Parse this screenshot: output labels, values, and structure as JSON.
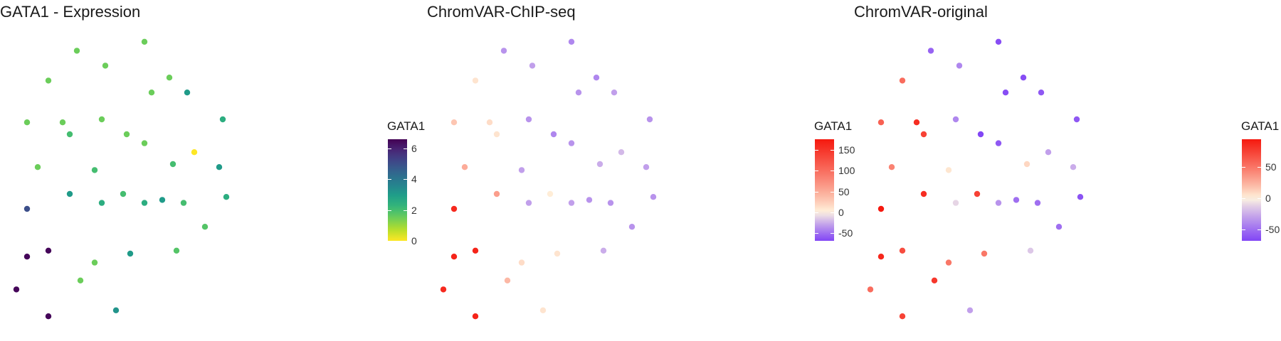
{
  "chart_data": [
    {
      "type": "scatter",
      "title": "GATA1 - Expression",
      "legend": {
        "title": "GATA1",
        "ticks": [
          0,
          2,
          4,
          6
        ],
        "domain": [
          0,
          6.6
        ],
        "scale": "viridis-reversed"
      },
      "points": [
        {
          "x": 0.37,
          "y": 0.04,
          "v": 1.5
        },
        {
          "x": 0.18,
          "y": 0.07,
          "v": 1.5
        },
        {
          "x": 0.26,
          "y": 0.12,
          "v": 1.5
        },
        {
          "x": 0.1,
          "y": 0.17,
          "v": 1.5
        },
        {
          "x": 0.44,
          "y": 0.16,
          "v": 1.5
        },
        {
          "x": 0.39,
          "y": 0.21,
          "v": 1.5
        },
        {
          "x": 0.49,
          "y": 0.21,
          "v": 3.0
        },
        {
          "x": 0.25,
          "y": 0.3,
          "v": 1.5
        },
        {
          "x": 0.14,
          "y": 0.31,
          "v": 1.5
        },
        {
          "x": 0.04,
          "y": 0.31,
          "v": 1.5
        },
        {
          "x": 0.59,
          "y": 0.3,
          "v": 2.5
        },
        {
          "x": 0.16,
          "y": 0.35,
          "v": 2.0
        },
        {
          "x": 0.32,
          "y": 0.35,
          "v": 1.5
        },
        {
          "x": 0.37,
          "y": 0.38,
          "v": 1.5
        },
        {
          "x": 0.51,
          "y": 0.41,
          "v": 0.0
        },
        {
          "x": 0.45,
          "y": 0.45,
          "v": 2.0
        },
        {
          "x": 0.58,
          "y": 0.46,
          "v": 3.0
        },
        {
          "x": 0.07,
          "y": 0.46,
          "v": 1.5
        },
        {
          "x": 0.23,
          "y": 0.47,
          "v": 2.0
        },
        {
          "x": 0.16,
          "y": 0.55,
          "v": 3.0
        },
        {
          "x": 0.31,
          "y": 0.55,
          "v": 2.0
        },
        {
          "x": 0.25,
          "y": 0.58,
          "v": 2.5
        },
        {
          "x": 0.37,
          "y": 0.58,
          "v": 2.5
        },
        {
          "x": 0.42,
          "y": 0.57,
          "v": 3.0
        },
        {
          "x": 0.48,
          "y": 0.58,
          "v": 2.0
        },
        {
          "x": 0.6,
          "y": 0.56,
          "v": 2.5
        },
        {
          "x": 0.04,
          "y": 0.6,
          "v": 5.0
        },
        {
          "x": 0.54,
          "y": 0.66,
          "v": 1.8
        },
        {
          "x": 0.1,
          "y": 0.74,
          "v": 6.5
        },
        {
          "x": 0.04,
          "y": 0.76,
          "v": 6.5
        },
        {
          "x": 0.33,
          "y": 0.75,
          "v": 3.0
        },
        {
          "x": 0.46,
          "y": 0.74,
          "v": 1.8
        },
        {
          "x": 0.23,
          "y": 0.78,
          "v": 1.5
        },
        {
          "x": 0.19,
          "y": 0.84,
          "v": 1.5
        },
        {
          "x": 0.01,
          "y": 0.87,
          "v": 6.5
        },
        {
          "x": 0.29,
          "y": 0.94,
          "v": 3.2
        },
        {
          "x": 0.1,
          "y": 0.96,
          "v": 6.5
        }
      ]
    },
    {
      "type": "scatter",
      "title": "ChromVAR-ChIP-seq",
      "legend": {
        "title": "GATA1",
        "ticks": [
          -50,
          0,
          50,
          100,
          150
        ],
        "domain": [
          -68,
          175
        ],
        "scale": "purple-white-red"
      },
      "points": [
        {
          "x": 0.37,
          "y": 0.04,
          "v": -40
        },
        {
          "x": 0.18,
          "y": 0.07,
          "v": -35
        },
        {
          "x": 0.26,
          "y": 0.12,
          "v": -30
        },
        {
          "x": 0.1,
          "y": 0.17,
          "v": 10
        },
        {
          "x": 0.44,
          "y": 0.16,
          "v": -40
        },
        {
          "x": 0.39,
          "y": 0.21,
          "v": -35
        },
        {
          "x": 0.49,
          "y": 0.21,
          "v": -30
        },
        {
          "x": 0.25,
          "y": 0.3,
          "v": -35
        },
        {
          "x": 0.14,
          "y": 0.31,
          "v": 15
        },
        {
          "x": 0.04,
          "y": 0.31,
          "v": 30
        },
        {
          "x": 0.59,
          "y": 0.3,
          "v": -35
        },
        {
          "x": 0.16,
          "y": 0.35,
          "v": 10
        },
        {
          "x": 0.32,
          "y": 0.35,
          "v": -40
        },
        {
          "x": 0.37,
          "y": 0.38,
          "v": -35
        },
        {
          "x": 0.51,
          "y": 0.41,
          "v": -20
        },
        {
          "x": 0.45,
          "y": 0.45,
          "v": -25
        },
        {
          "x": 0.58,
          "y": 0.46,
          "v": -30
        },
        {
          "x": 0.07,
          "y": 0.46,
          "v": 50
        },
        {
          "x": 0.23,
          "y": 0.47,
          "v": -30
        },
        {
          "x": 0.16,
          "y": 0.55,
          "v": 60
        },
        {
          "x": 0.31,
          "y": 0.55,
          "v": 5
        },
        {
          "x": 0.25,
          "y": 0.58,
          "v": -30
        },
        {
          "x": 0.37,
          "y": 0.58,
          "v": -30
        },
        {
          "x": 0.42,
          "y": 0.57,
          "v": -35
        },
        {
          "x": 0.48,
          "y": 0.58,
          "v": -35
        },
        {
          "x": 0.6,
          "y": 0.56,
          "v": -35
        },
        {
          "x": 0.04,
          "y": 0.6,
          "v": 160
        },
        {
          "x": 0.54,
          "y": 0.66,
          "v": -35
        },
        {
          "x": 0.1,
          "y": 0.74,
          "v": 165
        },
        {
          "x": 0.04,
          "y": 0.76,
          "v": 165
        },
        {
          "x": 0.33,
          "y": 0.75,
          "v": 10
        },
        {
          "x": 0.46,
          "y": 0.74,
          "v": -25
        },
        {
          "x": 0.23,
          "y": 0.78,
          "v": 15
        },
        {
          "x": 0.19,
          "y": 0.84,
          "v": 40
        },
        {
          "x": 0.01,
          "y": 0.87,
          "v": 160
        },
        {
          "x": 0.29,
          "y": 0.94,
          "v": 10
        },
        {
          "x": 0.1,
          "y": 0.96,
          "v": 165
        }
      ]
    },
    {
      "type": "scatter",
      "title": "ChromVAR-original",
      "legend": {
        "title": "GATA1",
        "ticks": [
          -50,
          0,
          50
        ],
        "domain": [
          -68,
          95
        ],
        "scale": "purple-white-red"
      },
      "points": [
        {
          "x": 0.37,
          "y": 0.04,
          "v": -65
        },
        {
          "x": 0.18,
          "y": 0.07,
          "v": -55
        },
        {
          "x": 0.26,
          "y": 0.12,
          "v": -40
        },
        {
          "x": 0.1,
          "y": 0.17,
          "v": 55
        },
        {
          "x": 0.44,
          "y": 0.16,
          "v": -65
        },
        {
          "x": 0.39,
          "y": 0.21,
          "v": -65
        },
        {
          "x": 0.49,
          "y": 0.21,
          "v": -60
        },
        {
          "x": 0.25,
          "y": 0.3,
          "v": -40
        },
        {
          "x": 0.14,
          "y": 0.31,
          "v": 85
        },
        {
          "x": 0.04,
          "y": 0.31,
          "v": 60
        },
        {
          "x": 0.59,
          "y": 0.3,
          "v": -60
        },
        {
          "x": 0.16,
          "y": 0.35,
          "v": 75
        },
        {
          "x": 0.32,
          "y": 0.35,
          "v": -68
        },
        {
          "x": 0.37,
          "y": 0.38,
          "v": -60
        },
        {
          "x": 0.51,
          "y": 0.41,
          "v": -30
        },
        {
          "x": 0.45,
          "y": 0.45,
          "v": 10
        },
        {
          "x": 0.58,
          "y": 0.46,
          "v": -25
        },
        {
          "x": 0.07,
          "y": 0.46,
          "v": 45
        },
        {
          "x": 0.23,
          "y": 0.47,
          "v": 5
        },
        {
          "x": 0.16,
          "y": 0.55,
          "v": 85
        },
        {
          "x": 0.31,
          "y": 0.55,
          "v": 75
        },
        {
          "x": 0.25,
          "y": 0.58,
          "v": -10
        },
        {
          "x": 0.37,
          "y": 0.58,
          "v": -35
        },
        {
          "x": 0.42,
          "y": 0.57,
          "v": -50
        },
        {
          "x": 0.48,
          "y": 0.58,
          "v": -50
        },
        {
          "x": 0.6,
          "y": 0.56,
          "v": -62
        },
        {
          "x": 0.04,
          "y": 0.6,
          "v": 95
        },
        {
          "x": 0.54,
          "y": 0.66,
          "v": -50
        },
        {
          "x": 0.1,
          "y": 0.74,
          "v": 70
        },
        {
          "x": 0.04,
          "y": 0.76,
          "v": 88
        },
        {
          "x": 0.33,
          "y": 0.75,
          "v": 50
        },
        {
          "x": 0.46,
          "y": 0.74,
          "v": -15
        },
        {
          "x": 0.23,
          "y": 0.78,
          "v": 50
        },
        {
          "x": 0.19,
          "y": 0.84,
          "v": 80
        },
        {
          "x": 0.01,
          "y": 0.87,
          "v": 55
        },
        {
          "x": 0.29,
          "y": 0.94,
          "v": -30
        },
        {
          "x": 0.1,
          "y": 0.96,
          "v": 75
        }
      ]
    }
  ]
}
